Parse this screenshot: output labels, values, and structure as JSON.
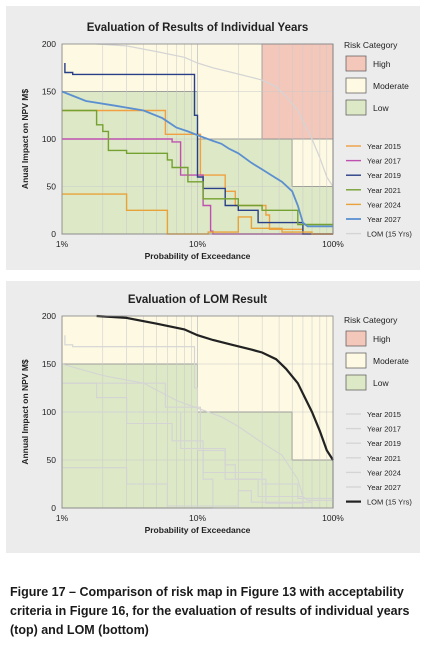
{
  "caption": "Figure 17 – Comparison of risk map in Figure 13 with acceptability criteria in Figure 16, for the evaluation of results of individual years (top) and LOM (bottom)",
  "colors": {
    "high_zone": "#f4c7bb",
    "moderate_zone": "#fdf9e3",
    "low_zone": "#dce8c6",
    "grid": "#c9c9c9",
    "zone_border": "#4a4a4a",
    "faded_line": "#d4d4d4"
  },
  "chart_data": [
    {
      "type": "line",
      "title": "Evaluation of Results of Individual Years",
      "xlabel": "Probability of Exceedance",
      "ylabel": "Anual Impact on NPV M$",
      "x_scale": "log",
      "xlim": [
        0.01,
        1
      ],
      "ylim": [
        0,
        200
      ],
      "x_ticks": [
        {
          "v": 0.01,
          "label": "1%"
        },
        {
          "v": 0.1,
          "label": "10%"
        },
        {
          "v": 1,
          "label": "100%"
        }
      ],
      "y_ticks": [
        0,
        50,
        100,
        150,
        200
      ],
      "grid": true,
      "legend_position": "right",
      "zones_title": "Risk Category",
      "zones": [
        {
          "name": "High",
          "color": "#f4c7bb"
        },
        {
          "name": "Moderate",
          "color": "#fdf9e3"
        },
        {
          "name": "Low",
          "color": "#dce8c6"
        }
      ],
      "series": [
        {
          "name": "Year 2015",
          "color": "#f0a040",
          "width": 1.4,
          "x": [
            0.01,
            0.058,
            0.058,
            0.105,
            0.105,
            0.16,
            0.16,
            0.19,
            0.19,
            0.32,
            0.32,
            0.34,
            0.34,
            0.6,
            0.6,
            1
          ],
          "y": [
            130,
            130,
            105,
            105,
            62,
            62,
            45,
            45,
            30,
            30,
            20,
            20,
            5,
            5,
            0,
            0
          ]
        },
        {
          "name": "Year 2017",
          "color": "#c050b0",
          "width": 1.4,
          "x": [
            0.01,
            0.065,
            0.065,
            0.075,
            0.075,
            0.11,
            0.11,
            0.125,
            0.125,
            0.13,
            0.13,
            1
          ],
          "y": [
            100,
            100,
            97,
            97,
            62,
            62,
            30,
            30,
            3,
            3,
            0,
            0
          ]
        },
        {
          "name": "Year 2019",
          "color": "#283e86",
          "width": 1.4,
          "x": [
            0.0105,
            0.0105,
            0.012,
            0.012,
            0.095,
            0.095,
            0.1,
            0.1,
            0.11,
            0.11,
            0.16,
            0.16,
            0.2,
            0.2,
            0.28,
            0.28,
            0.6,
            0.6,
            1
          ],
          "y": [
            180,
            170,
            170,
            168,
            168,
            125,
            125,
            60,
            60,
            48,
            48,
            30,
            30,
            25,
            25,
            12,
            12,
            0,
            0
          ]
        },
        {
          "name": "Year 2021",
          "color": "#74a131",
          "width": 1.4,
          "x": [
            0.01,
            0.018,
            0.018,
            0.02,
            0.02,
            0.022,
            0.022,
            0.03,
            0.03,
            0.06,
            0.06,
            0.065,
            0.065,
            0.085,
            0.085,
            0.11,
            0.11,
            0.2,
            0.2,
            0.3,
            0.3,
            0.55,
            0.55,
            1
          ],
          "y": [
            130,
            130,
            115,
            115,
            108,
            108,
            88,
            88,
            85,
            85,
            78,
            78,
            70,
            70,
            55,
            55,
            37,
            37,
            30,
            30,
            25,
            25,
            10,
            10
          ]
        },
        {
          "name": "Year 2024",
          "color": "#e8a23a",
          "width": 1.4,
          "x": [
            0.01,
            0.03,
            0.03,
            0.06,
            0.06,
            0.12,
            0.12,
            0.2,
            0.2,
            0.25,
            0.25,
            0.42,
            0.42,
            0.7,
            0.7,
            1
          ],
          "y": [
            42,
            42,
            25,
            25,
            0,
            0,
            2,
            2,
            18,
            18,
            6,
            6,
            2,
            2,
            0,
            0
          ]
        },
        {
          "name": "Year 2027",
          "color": "#5b8fd0",
          "width": 1.8,
          "x": [
            0.01,
            0.015,
            0.025,
            0.04,
            0.055,
            0.07,
            0.085,
            0.1,
            0.13,
            0.15,
            0.17,
            0.2,
            0.25,
            0.3,
            0.35,
            0.42,
            0.5,
            0.55,
            0.6,
            0.65,
            1
          ],
          "y": [
            150,
            140,
            135,
            130,
            122,
            112,
            108,
            104,
            98,
            95,
            90,
            85,
            75,
            68,
            62,
            55,
            45,
            30,
            12,
            8,
            8
          ]
        },
        {
          "name": "LOM (15 Yrs)",
          "color": "#d4d4d4",
          "width": 1.2,
          "x": [
            0.018,
            0.03,
            0.05,
            0.08,
            0.1,
            0.13,
            0.18,
            0.25,
            0.3,
            0.38,
            0.45,
            0.55,
            0.62,
            0.7,
            0.8,
            0.9,
            1
          ],
          "y": [
            200,
            198,
            192,
            186,
            180,
            175,
            170,
            165,
            162,
            155,
            145,
            130,
            115,
            100,
            80,
            60,
            50
          ]
        }
      ]
    },
    {
      "type": "line",
      "title": "Evaluation of LOM Result",
      "xlabel": "Probability of Exceedance",
      "ylabel": "Annual Impact on NPV M$",
      "x_scale": "log",
      "xlim": [
        0.01,
        1
      ],
      "ylim": [
        0,
        200
      ],
      "x_ticks": [
        {
          "v": 0.01,
          "label": "1%"
        },
        {
          "v": 0.1,
          "label": "10%"
        },
        {
          "v": 1,
          "label": "100%"
        }
      ],
      "y_ticks": [
        0,
        50,
        100,
        150,
        200
      ],
      "grid": true,
      "legend_position": "right",
      "zones_title": "Risk Category",
      "zones": [
        {
          "name": "High",
          "color": "#f4c7bb"
        },
        {
          "name": "Moderate",
          "color": "#fdf9e3"
        },
        {
          "name": "Low",
          "color": "#dce8c6"
        }
      ],
      "series": [
        {
          "name": "Year 2015",
          "color": "#d4d4d4",
          "width": 1.1,
          "x": [
            0.01,
            0.058,
            0.058,
            0.105,
            0.105,
            0.16,
            0.16,
            0.19,
            0.19,
            0.32,
            0.32,
            0.6,
            0.6,
            1
          ],
          "y": [
            130,
            130,
            105,
            105,
            62,
            62,
            45,
            45,
            30,
            30,
            5,
            5,
            0,
            0
          ]
        },
        {
          "name": "Year 2017",
          "color": "#d4d4d4",
          "width": 1.1,
          "x": [
            0.01,
            0.075,
            0.075,
            0.11,
            0.11,
            0.13,
            0.13,
            1
          ],
          "y": [
            100,
            100,
            62,
            62,
            30,
            30,
            0,
            0
          ]
        },
        {
          "name": "Year 2019",
          "color": "#d4d4d4",
          "width": 1.1,
          "x": [
            0.0105,
            0.0105,
            0.012,
            0.012,
            0.095,
            0.095,
            0.1,
            0.1,
            0.16,
            0.16,
            0.28,
            0.28,
            0.6,
            0.6,
            1
          ],
          "y": [
            180,
            170,
            170,
            168,
            168,
            125,
            125,
            60,
            60,
            30,
            30,
            12,
            12,
            0,
            0
          ]
        },
        {
          "name": "Year 2021",
          "color": "#d4d4d4",
          "width": 1.1,
          "x": [
            0.01,
            0.018,
            0.018,
            0.03,
            0.03,
            0.065,
            0.065,
            0.11,
            0.11,
            0.3,
            0.3,
            0.55,
            0.55,
            1
          ],
          "y": [
            130,
            130,
            115,
            115,
            88,
            88,
            70,
            70,
            37,
            37,
            25,
            25,
            10,
            10
          ]
        },
        {
          "name": "Year 2024",
          "color": "#d4d4d4",
          "width": 1.1,
          "x": [
            0.01,
            0.03,
            0.03,
            0.06,
            0.06,
            0.2,
            0.2,
            0.25,
            0.25,
            0.7,
            0.7,
            1
          ],
          "y": [
            42,
            42,
            25,
            25,
            2,
            2,
            18,
            18,
            6,
            6,
            0,
            0
          ]
        },
        {
          "name": "Year 2027",
          "color": "#d4d4d4",
          "width": 1.1,
          "x": [
            0.01,
            0.02,
            0.04,
            0.07,
            0.1,
            0.15,
            0.2,
            0.3,
            0.42,
            0.55,
            0.6,
            0.65,
            1
          ],
          "y": [
            150,
            138,
            130,
            112,
            104,
            95,
            85,
            68,
            55,
            30,
            12,
            8,
            8
          ]
        },
        {
          "name": "LOM (15 Yrs)",
          "color": "#222222",
          "width": 2.2,
          "x": [
            0.018,
            0.03,
            0.05,
            0.08,
            0.1,
            0.13,
            0.18,
            0.25,
            0.3,
            0.38,
            0.45,
            0.55,
            0.62,
            0.7,
            0.8,
            0.9,
            1
          ],
          "y": [
            200,
            198,
            192,
            186,
            180,
            175,
            170,
            165,
            162,
            155,
            145,
            130,
            115,
            100,
            80,
            60,
            50
          ]
        }
      ]
    }
  ]
}
